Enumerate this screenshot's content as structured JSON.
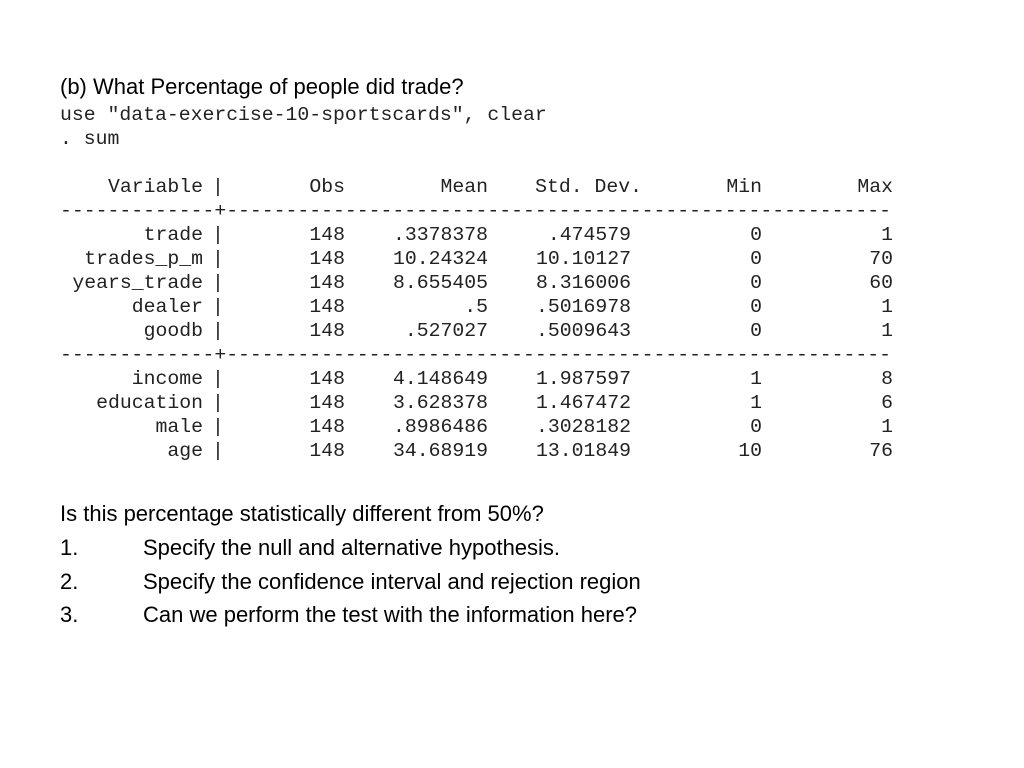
{
  "heading": "(b) What Percentage of people did trade?",
  "commands": [
    "use \"data-exercise-10-sportscards\", clear",
    ". sum"
  ],
  "table": {
    "divider": "|",
    "rule": "-------------+--------------------------------------------------------",
    "columns": [
      "Variable",
      "Obs",
      "Mean",
      "Std. Dev.",
      "Min",
      "Max"
    ],
    "groups": [
      [
        [
          "trade",
          "148",
          ".3378378",
          ".474579",
          "0",
          "1"
        ],
        [
          "trades_p_m",
          "148",
          "10.24324",
          "10.10127",
          "0",
          "70"
        ],
        [
          "years_trade",
          "148",
          "8.655405",
          "8.316006",
          "0",
          "60"
        ],
        [
          "dealer",
          "148",
          ".5",
          ".5016978",
          "0",
          "1"
        ],
        [
          "goodb",
          "148",
          ".527027",
          ".5009643",
          "0",
          "1"
        ]
      ],
      [
        [
          "income",
          "148",
          "4.148649",
          "1.987597",
          "1",
          "8"
        ],
        [
          "education",
          "148",
          "3.628378",
          "1.467472",
          "1",
          "6"
        ],
        [
          "male",
          "148",
          ".8986486",
          ".3028182",
          "0",
          "1"
        ],
        [
          "age",
          "148",
          "34.68919",
          "13.01849",
          "10",
          "76"
        ]
      ]
    ]
  },
  "question": "Is this percentage statistically different from 50%?",
  "items": [
    {
      "number": "1.",
      "text": "Specify the null and alternative hypothesis."
    },
    {
      "number": "2.",
      "text": "Specify the confidence interval and rejection region"
    },
    {
      "number": "3.",
      "text": "Can we perform the test with the information here?"
    }
  ]
}
